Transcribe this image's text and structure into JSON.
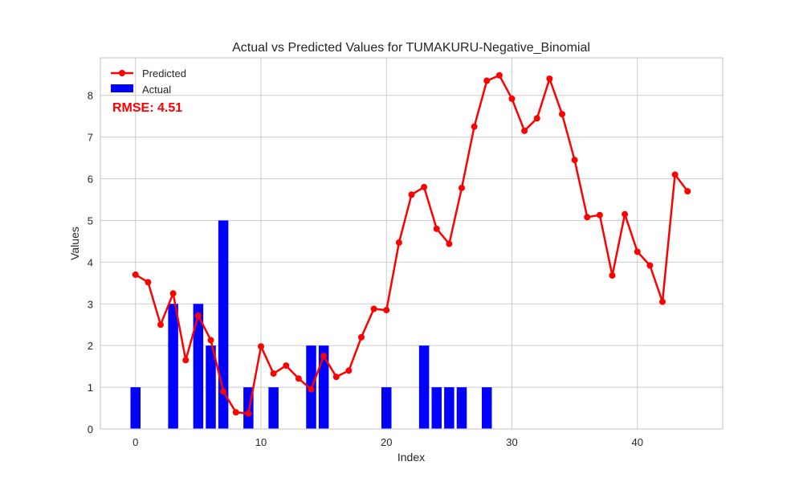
{
  "chart_data": {
    "type": "bar+line",
    "title": "Actual vs Predicted Values for TUMAKURU-Negative_Binomial",
    "xlabel": "Index",
    "ylabel": "Values",
    "xlim": [
      -2.8,
      46.8
    ],
    "ylim": [
      0,
      8.9
    ],
    "xticks": [
      0,
      10,
      20,
      30,
      40
    ],
    "yticks": [
      0,
      1,
      2,
      3,
      4,
      5,
      6,
      7,
      8
    ],
    "grid": true,
    "legend_position": "top-left",
    "annotation": "RMSE: 4.51",
    "series": [
      {
        "name": "Predicted",
        "kind": "line",
        "color": "#ff0000",
        "x": [
          0,
          1,
          2,
          3,
          4,
          5,
          6,
          7,
          8,
          9,
          10,
          11,
          12,
          13,
          14,
          15,
          16,
          17,
          18,
          19,
          20,
          21,
          22,
          23,
          24,
          25,
          26,
          27,
          28,
          29,
          30,
          31,
          32,
          33,
          34,
          35,
          36,
          37,
          38,
          39,
          40,
          41,
          42,
          43,
          44
        ],
        "values": [
          3.7,
          3.52,
          2.5,
          3.25,
          1.65,
          2.72,
          2.13,
          0.9,
          0.4,
          0.37,
          1.98,
          1.33,
          1.52,
          1.21,
          0.95,
          1.75,
          1.25,
          1.4,
          2.2,
          2.88,
          2.85,
          4.47,
          5.62,
          5.8,
          4.8,
          4.44,
          5.78,
          7.25,
          8.35,
          8.48,
          7.92,
          7.15,
          7.45,
          8.4,
          7.55,
          6.45,
          5.08,
          5.13,
          3.68,
          5.15,
          4.25,
          3.92,
          3.05,
          6.1,
          5.7
        ]
      },
      {
        "name": "Actual",
        "kind": "bar",
        "color": "#0000ff",
        "x": [
          0,
          1,
          2,
          3,
          4,
          5,
          6,
          7,
          8,
          9,
          10,
          11,
          12,
          13,
          14,
          15,
          16,
          17,
          18,
          19,
          20,
          21,
          22,
          23,
          24,
          25,
          26,
          27,
          28
        ],
        "values": [
          1,
          0,
          0,
          3,
          0,
          3,
          2,
          5,
          0,
          1,
          0,
          1,
          0,
          0,
          2,
          2,
          0,
          0,
          0,
          0,
          1,
          0,
          0,
          2,
          1,
          1,
          1,
          0,
          1
        ]
      }
    ]
  }
}
